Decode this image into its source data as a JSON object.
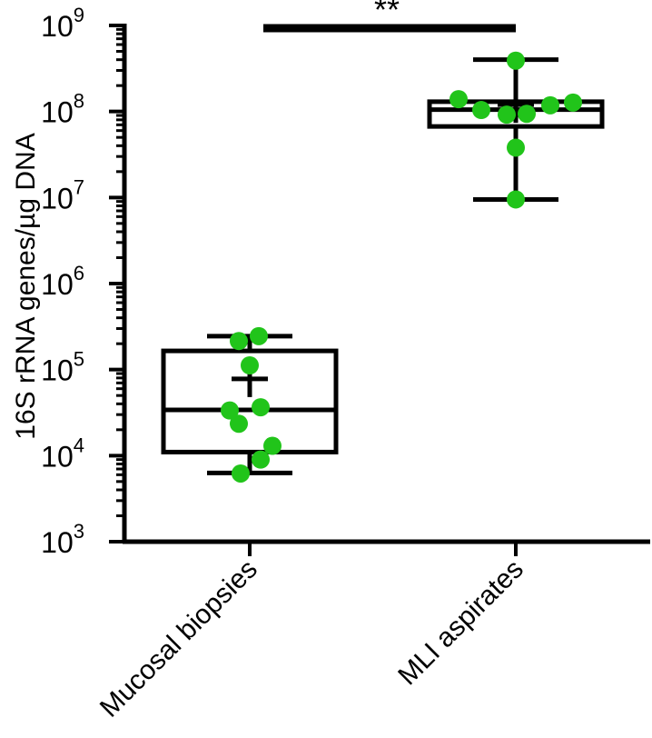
{
  "chart_data": {
    "type": "box",
    "title": "",
    "xlabel": "",
    "ylabel": "16S rRNA genes/µg DNA",
    "yscale": "log10",
    "ylim": [
      1000,
      1000000000
    ],
    "yticks": [
      {
        "value": 1000,
        "base": "10",
        "exp": "3"
      },
      {
        "value": 10000,
        "base": "10",
        "exp": "4"
      },
      {
        "value": 100000,
        "base": "10",
        "exp": "5"
      },
      {
        "value": 1000000,
        "base": "10",
        "exp": "6"
      },
      {
        "value": 10000000,
        "base": "10",
        "exp": "7"
      },
      {
        "value": 100000000,
        "base": "10",
        "exp": "8"
      },
      {
        "value": 1000000000,
        "base": "10",
        "exp": "9"
      }
    ],
    "categories": [
      "Mucosal biopsies",
      "MLI aspirates"
    ],
    "groups": [
      {
        "name": "Mucosal biopsies",
        "whisker_low": 6300,
        "q1": 11000,
        "median": 34000,
        "q3": 165000,
        "whisker_high": 245000,
        "mean": 78000,
        "points": [
          6200,
          9000,
          13000,
          23500,
          33500,
          36500,
          112000,
          215000,
          245000
        ]
      },
      {
        "name": "MLI aspirates",
        "whisker_low": 9500000,
        "q1": 67000000,
        "median": 105000000,
        "q3": 130000000,
        "whisker_high": 400000000,
        "mean": 120000000,
        "points": [
          9500000,
          38000000,
          92000000,
          94000000,
          104000000,
          118000000,
          127000000,
          139000000,
          390000000
        ]
      }
    ],
    "significance": {
      "label": "**",
      "between": [
        "Mucosal biopsies",
        "MLI aspirates"
      ]
    },
    "point_color": "#21c41a"
  }
}
